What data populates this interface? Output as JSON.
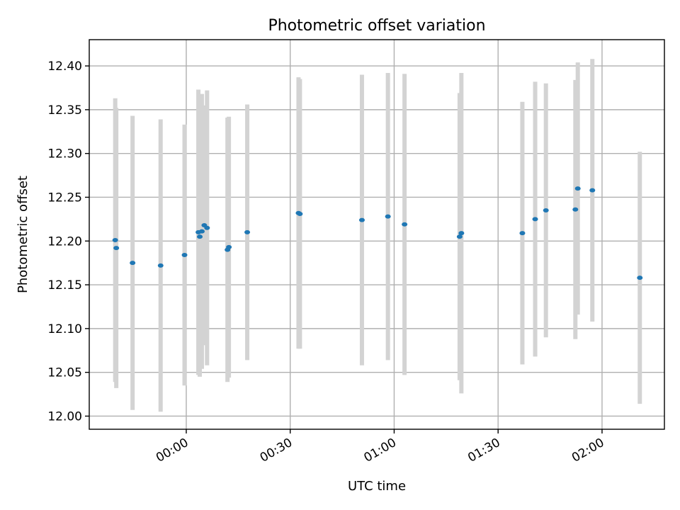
{
  "chart_data": {
    "type": "scatter",
    "title": "Photometric offset variation",
    "xlabel": "UTC time",
    "ylabel": "Photometric offset",
    "xlim_minutes": [
      -28,
      138
    ],
    "ylim": [
      11.985,
      12.43
    ],
    "xticks": [
      {
        "label": "00:00",
        "minutes": 0
      },
      {
        "label": "00:30",
        "minutes": 30
      },
      {
        "label": "01:00",
        "minutes": 60
      },
      {
        "label": "01:30",
        "minutes": 90
      },
      {
        "label": "02:00",
        "minutes": 120
      }
    ],
    "yticks": [
      "12.00",
      "12.05",
      "12.10",
      "12.15",
      "12.20",
      "12.25",
      "12.30",
      "12.35",
      "12.40"
    ],
    "grid": true,
    "colors": {
      "points": "#1f77b4",
      "errorbars": "#d3d3d3"
    },
    "series": [
      {
        "points": [
          {
            "t": -20.5,
            "y": 12.201,
            "err": 0.162
          },
          {
            "t": -20.2,
            "y": 12.192,
            "err": 0.16
          },
          {
            "t": -15.5,
            "y": 12.175,
            "err": 0.168
          },
          {
            "t": -7.4,
            "y": 12.172,
            "err": 0.167
          },
          {
            "t": -0.5,
            "y": 12.184,
            "err": 0.149
          },
          {
            "t": 3.5,
            "y": 12.21,
            "err": 0.163
          },
          {
            "t": 3.9,
            "y": 12.205,
            "err": 0.16
          },
          {
            "t": 4.5,
            "y": 12.211,
            "err": 0.157
          },
          {
            "t": 5.2,
            "y": 12.218,
            "err": 0.137
          },
          {
            "t": 6.0,
            "y": 12.215,
            "err": 0.157
          },
          {
            "t": 11.9,
            "y": 12.19,
            "err": 0.151
          },
          {
            "t": 12.3,
            "y": 12.193,
            "err": 0.149
          },
          {
            "t": 17.6,
            "y": 12.21,
            "err": 0.146
          },
          {
            "t": 32.4,
            "y": 12.232,
            "err": 0.155
          },
          {
            "t": 32.8,
            "y": 12.231,
            "err": 0.154
          },
          {
            "t": 50.7,
            "y": 12.224,
            "err": 0.166
          },
          {
            "t": 58.2,
            "y": 12.228,
            "err": 0.164
          },
          {
            "t": 63.0,
            "y": 12.219,
            "err": 0.172
          },
          {
            "t": 78.9,
            "y": 12.205,
            "err": 0.164
          },
          {
            "t": 79.4,
            "y": 12.209,
            "err": 0.183
          },
          {
            "t": 97.0,
            "y": 12.209,
            "err": 0.15
          },
          {
            "t": 100.7,
            "y": 12.225,
            "err": 0.157
          },
          {
            "t": 103.8,
            "y": 12.235,
            "err": 0.145
          },
          {
            "t": 112.3,
            "y": 12.236,
            "err": 0.148
          },
          {
            "t": 113.0,
            "y": 12.26,
            "err": 0.144
          },
          {
            "t": 117.2,
            "y": 12.258,
            "err": 0.15
          },
          {
            "t": 130.9,
            "y": 12.158,
            "err": 0.144
          }
        ]
      }
    ]
  }
}
